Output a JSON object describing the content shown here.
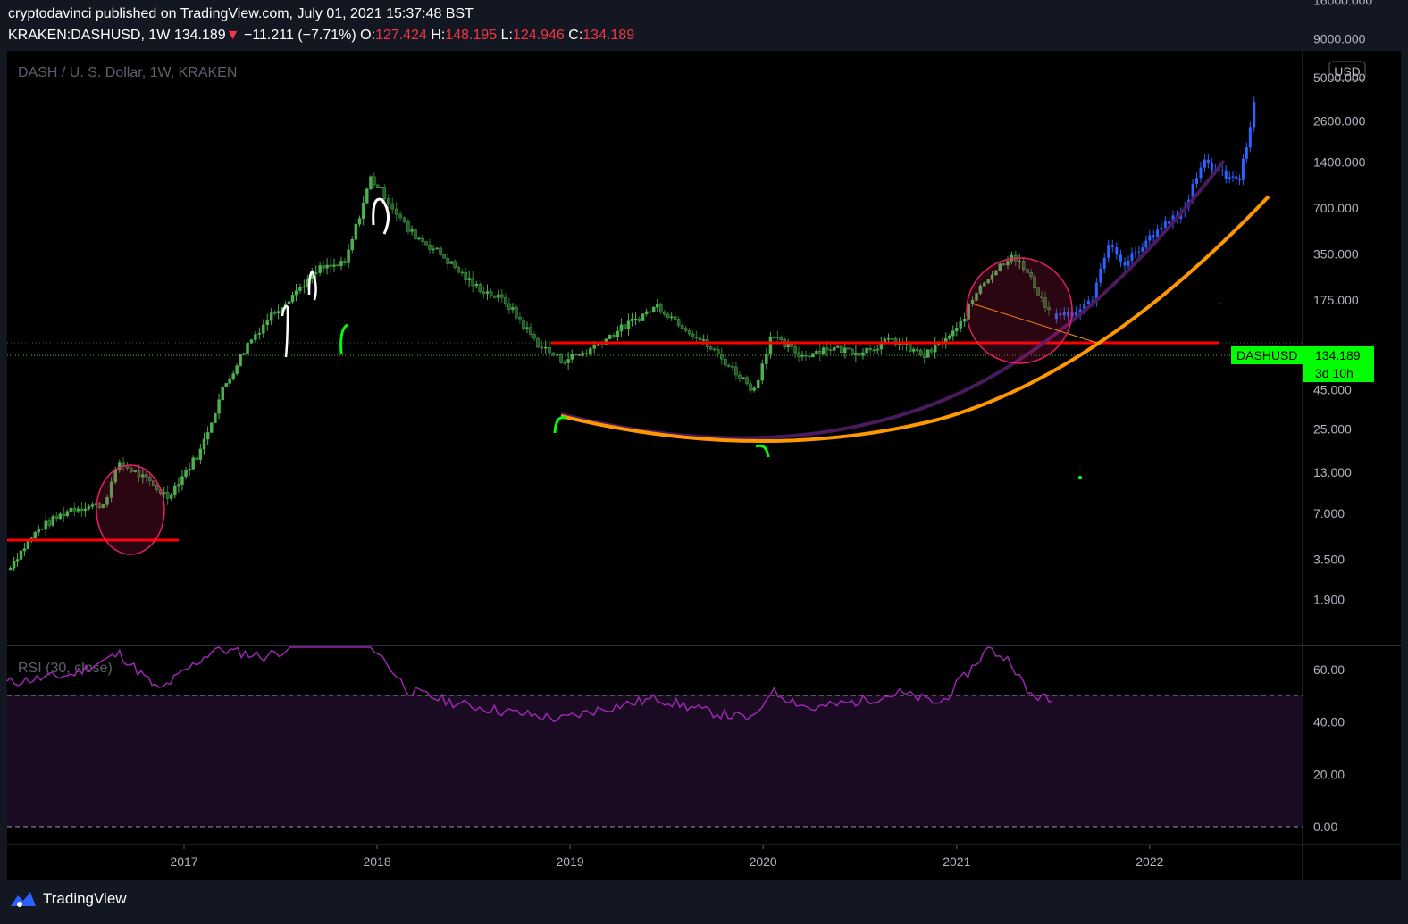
{
  "header": {
    "publisher": "cryptodavinci published on TradingView.com, July 01, 2021 15:37:48 BST",
    "symbol": "KRAKEN:DASHUSD, 1W",
    "last": "134.189",
    "change": "−11.211 (−7.71%)",
    "open_label": "O:",
    "open": "127.424",
    "high_label": "H:",
    "high": "148.195",
    "low_label": "L:",
    "low": "124.946",
    "close_label": "C:",
    "close": "134.189"
  },
  "footer": {
    "brand": "TradingView"
  },
  "colors": {
    "background": "#000000",
    "up_candle": "#4caf50",
    "down_candle": "#4caf50",
    "projection": "#2962ff",
    "support_line": "#ff0000",
    "purple_curve": "#4a1a5e",
    "orange_curve": "#ff9800",
    "rsi_line": "#9c27b0",
    "price_tag": "#00ff00"
  },
  "chart_data": [
    {
      "type": "line",
      "title": "DASH / U. S. Dollar, 1W, KRAKEN",
      "currency": "USD",
      "scale": "log",
      "ylim": [
        1.5,
        16000
      ],
      "y_ticks": [
        "16000.000",
        "9000.000",
        "5000.000",
        "2600.000",
        "1400.000",
        "700.000",
        "350.000",
        "175.000",
        "45.000",
        "25.000",
        "13.000",
        "7.000",
        "3.500",
        "1.900"
      ],
      "x_ticks": [
        "2017",
        "2018",
        "2019",
        "2020",
        "2021",
        "2022"
      ],
      "price_label": {
        "symbol": "DASHUSD",
        "value": "134.189",
        "countdown": "3d 10h"
      },
      "series": [
        {
          "name": "",
          "x": [
            "2016-02-01",
            "2016-04-01",
            "2016-06-01",
            "2016-08-01",
            "2016-09-01",
            "2016-10-15",
            "2016-12-01",
            "2017-02-01",
            "2017-03-15",
            "2017-05-01",
            "2017-06-15",
            "2017-08-01",
            "2017-09-15",
            "2017-11-01",
            "2017-12-20",
            "2018-01-15",
            "2018-03-01",
            "2018-05-01",
            "2018-07-01",
            "2018-09-01",
            "2018-11-01",
            "2018-12-15",
            "2019-02-01",
            "2019-04-01",
            "2019-06-15",
            "2019-08-01",
            "2019-10-01",
            "2019-12-15",
            "2020-01-15",
            "2020-03-15",
            "2020-05-01",
            "2020-07-01",
            "2020-09-01",
            "2020-11-01",
            "2021-01-01",
            "2021-02-15",
            "2021-04-15",
            "2021-05-15",
            "2021-07-01"
          ],
          "values": [
            3,
            5.5,
            7.5,
            8,
            15,
            12,
            9,
            18,
            45,
            90,
            140,
            200,
            280,
            300,
            1100,
            850,
            500,
            350,
            220,
            170,
            90,
            70,
            80,
            110,
            160,
            120,
            80,
            45,
            100,
            75,
            85,
            80,
            95,
            75,
            110,
            220,
            350,
            260,
            134
          ]
        },
        {
          "name": "",
          "x": [
            "2021-07-01",
            "2021-08-15",
            "2021-09-15",
            "2021-10-15",
            "2021-11-15",
            "2022-01-01",
            "2022-03-01",
            "2022-04-15",
            "2022-06-01",
            "2022-06-20",
            "2022-07-10",
            "2022-07-25"
          ],
          "values": [
            134,
            140,
            175,
            420,
            300,
            450,
            650,
            1400,
            1100,
            1100,
            2300,
            5000
          ]
        }
      ],
      "support_levels": [
        7,
        175
      ],
      "annotations": [
        "circle-2016",
        "circle-2021",
        "rounded-bottom-curves"
      ]
    },
    {
      "type": "line",
      "title": "RSI (30, close)",
      "ylim": [
        0,
        70
      ],
      "y_ticks": [
        "60.00",
        "40.00",
        "20.00",
        "0.00"
      ],
      "bands": [
        0,
        50
      ],
      "series": [
        {
          "name": "",
          "x": [
            "2016-02-01",
            "2016-06-01",
            "2016-09-01",
            "2016-11-15",
            "2017-03-01",
            "2017-06-01",
            "2017-09-15",
            "2017-12-20",
            "2018-03-01",
            "2018-06-01",
            "2018-09-01",
            "2018-12-15",
            "2019-03-01",
            "2019-06-15",
            "2019-09-15",
            "2019-12-15",
            "2020-01-15",
            "2020-04-01",
            "2020-07-01",
            "2020-09-15",
            "2020-12-01",
            "2021-01-15",
            "2021-03-01",
            "2021-04-15",
            "2021-05-15",
            "2021-07-01"
          ],
          "values": [
            55,
            58,
            66,
            52,
            68,
            65,
            72,
            70,
            52,
            47,
            44,
            41,
            45,
            49,
            44,
            41,
            52,
            45,
            48,
            51,
            47,
            57,
            68,
            63,
            51,
            48
          ]
        }
      ]
    }
  ]
}
